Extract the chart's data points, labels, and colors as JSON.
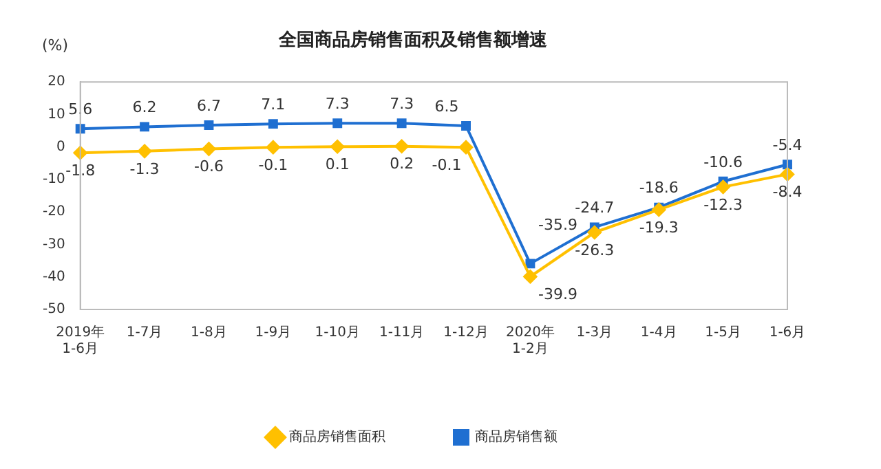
{
  "chart_data": {
    "type": "line",
    "title": "全国商品房销售面积及销售额增速",
    "ylabel": "(%)",
    "categories": [
      "2019年\n1-6月",
      "1-7月",
      "1-8月",
      "1-9月",
      "1-10月",
      "1-11月",
      "1-12月",
      "2020年\n1-2月",
      "1-3月",
      "1-4月",
      "1-5月",
      "1-6月"
    ],
    "series": [
      {
        "name": "商品房销售面积",
        "color": "#ffc000",
        "marker": "diamond",
        "values": [
          -1.8,
          -1.3,
          -0.6,
          -0.1,
          0.1,
          0.2,
          -0.1,
          -39.9,
          -26.3,
          -19.3,
          -12.3,
          -8.4
        ]
      },
      {
        "name": "商品房销售额",
        "color": "#1f6fd1",
        "marker": "square",
        "values": [
          5.6,
          6.2,
          6.7,
          7.1,
          7.3,
          7.3,
          6.5,
          -35.9,
          -24.7,
          -18.6,
          -10.6,
          -5.4
        ]
      }
    ],
    "ylim": [
      -50,
      20
    ],
    "yticks": [
      -50,
      -40,
      -30,
      -20,
      -10,
      0,
      10,
      20
    ],
    "grid": false,
    "legend": "bottom",
    "data_labels": true
  }
}
